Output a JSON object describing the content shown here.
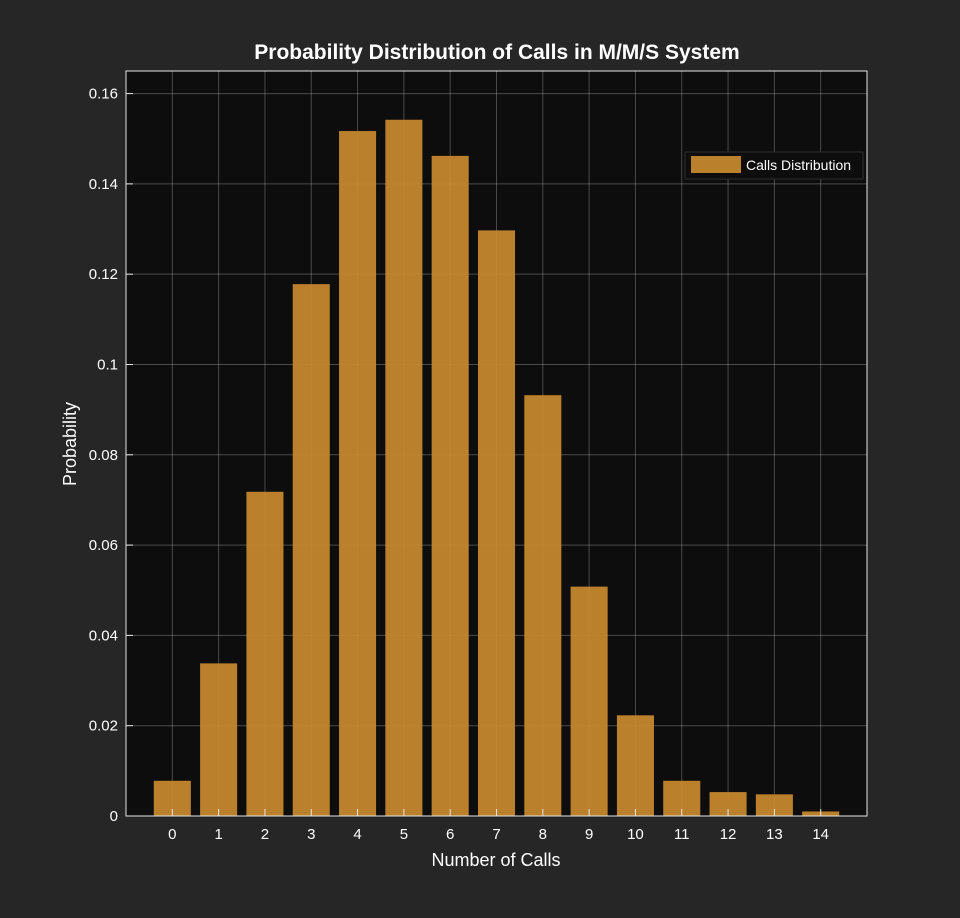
{
  "colors": {
    "figure_background": "#262626",
    "axes_background": "#0d0d0d",
    "grid": "#e6e6e6",
    "bar": "#c98a2e",
    "text": "#ffffff"
  },
  "chart_data": {
    "type": "bar",
    "title": "Probability Distribution of Calls in M/M/S System",
    "xlabel": "Number of Calls",
    "ylabel": "Probability",
    "categories": [
      "0",
      "1",
      "2",
      "3",
      "4",
      "5",
      "6",
      "7",
      "8",
      "9",
      "10",
      "11",
      "12",
      "13",
      "14"
    ],
    "series": [
      {
        "name": "Calls Distribution",
        "values": [
          0.0078,
          0.0338,
          0.0718,
          0.1178,
          0.1517,
          0.1542,
          0.1462,
          0.1297,
          0.0932,
          0.0508,
          0.0223,
          0.0078,
          0.0053,
          0.0048,
          0.001
        ]
      }
    ],
    "ylim": [
      0,
      0.165
    ],
    "yticks": [
      0,
      0.02,
      0.04,
      0.06,
      0.08,
      0.1,
      0.12,
      0.14,
      0.16
    ],
    "ytick_labels": [
      "0",
      "0.02",
      "0.04",
      "0.06",
      "0.08",
      "0.1",
      "0.12",
      "0.14",
      "0.16"
    ],
    "xlim": [
      -1,
      15
    ],
    "grid": true,
    "legend_position": "top-right"
  }
}
